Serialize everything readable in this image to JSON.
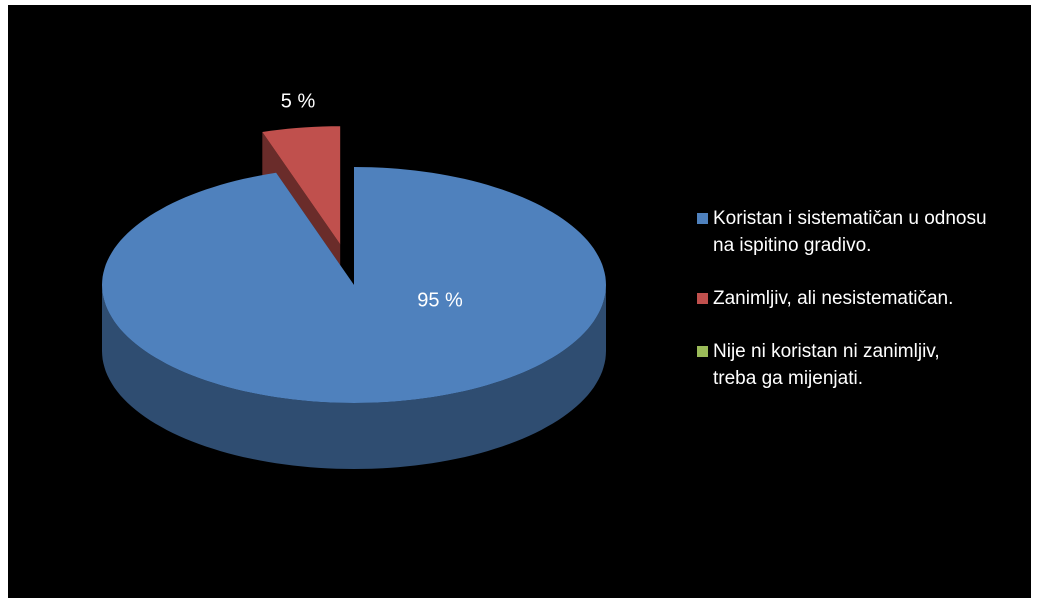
{
  "chart_data": {
    "type": "pie3d",
    "categories": [
      "Koristan i sistematičan u odnosu na ispitino gradivo.",
      "Zanimljiv, ali nesistematičan.",
      "Nije ni koristan ni zanimljiv, treba ga mijenjati."
    ],
    "values": [
      95,
      5,
      0
    ],
    "value_labels": [
      "95 %",
      "5 %",
      null
    ],
    "colors": [
      "#4f81bd",
      "#c0504d",
      "#9bbb59"
    ],
    "legend": "right"
  }
}
